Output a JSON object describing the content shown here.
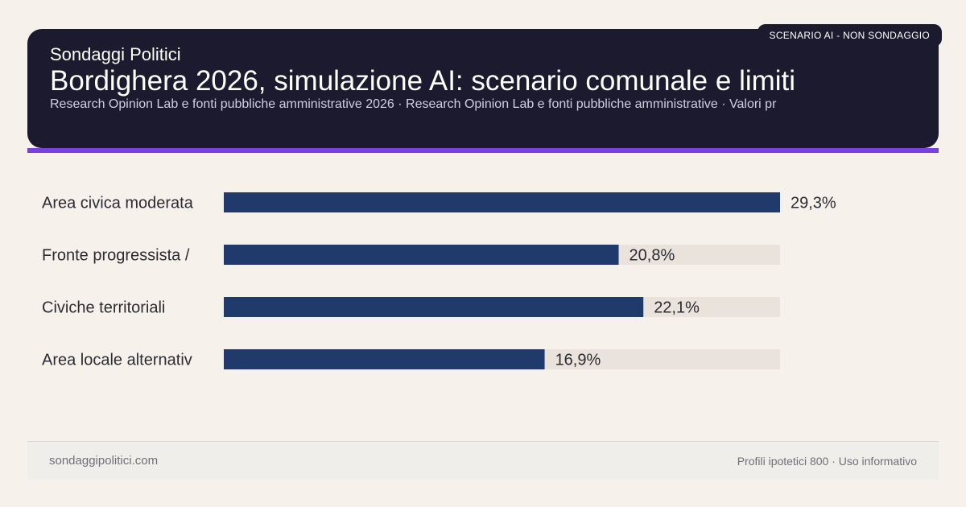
{
  "header": {
    "brand": "Sondaggi Politici",
    "title": "Bordighera 2026, simulazione AI: scenario comunale e limiti",
    "subtitle": "Research Opinion Lab e fonti pubbliche amministrative 2026 · Research Opinion Lab e fonti pubbliche amministrative · Valori pr",
    "badge": "SCENARIO AI - NON SONDAGGIO"
  },
  "chart_data": {
    "type": "bar",
    "orientation": "horizontal",
    "categories": [
      "Area civica moderata",
      "Fronte progressista /",
      "Civiche territoriali",
      "Area locale alternativ"
    ],
    "values": [
      29.3,
      20.8,
      22.1,
      16.9
    ],
    "value_labels": [
      "29,3%",
      "20,8%",
      "22,1%",
      "16,9%"
    ],
    "xlim": [
      0,
      29.3
    ],
    "bar_color": "#1f3a6b",
    "track_color": "#e9e3dc",
    "grid": false
  },
  "footer": {
    "left": "sondaggipolitici.com",
    "right": "Profili ipotetici 800 · Uso informativo"
  }
}
